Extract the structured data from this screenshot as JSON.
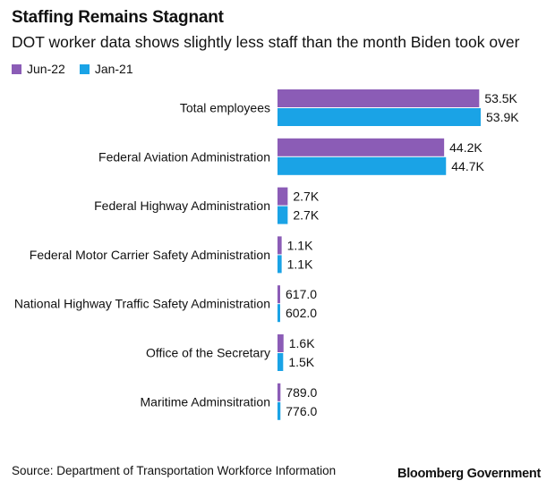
{
  "header": {
    "title": "Staffing Remains Stagnant",
    "subtitle": "DOT worker data shows slightly less staff than the month Biden took over"
  },
  "legend": [
    {
      "label": "Jun-22",
      "color": "#8b5cb6"
    },
    {
      "label": "Jan-21",
      "color": "#1aa3e6"
    }
  ],
  "footer": {
    "source": "Source: Department of Transportation Workforce Information",
    "brand": "Bloomberg Government"
  },
  "chart_data": {
    "type": "bar",
    "orientation": "horizontal",
    "categories": [
      "Total employees",
      "Federal Aviation Administration",
      "Federal Highway Administration",
      "Federal Motor Carrier Safety Administration",
      "National Highway Traffic Safety Administration",
      "Office of the Secretary",
      "Maritime Adminsitration"
    ],
    "series": [
      {
        "name": "Jun-22",
        "color": "#8b5cb6",
        "values": [
          53500,
          44200,
          2700,
          1100,
          617,
          1600,
          789
        ],
        "labels": [
          "53.5K",
          "44.2K",
          "2.7K",
          "1.1K",
          "617.0",
          "1.6K",
          "789.0"
        ]
      },
      {
        "name": "Jan-21",
        "color": "#1aa3e6",
        "values": [
          53900,
          44700,
          2700,
          1100,
          602,
          1500,
          776
        ],
        "labels": [
          "53.9K",
          "44.7K",
          "2.7K",
          "1.1K",
          "602.0",
          "1.5K",
          "776.0"
        ]
      }
    ],
    "xlim": [
      0,
      53900
    ],
    "grid": false,
    "legend_position": "top-left"
  }
}
